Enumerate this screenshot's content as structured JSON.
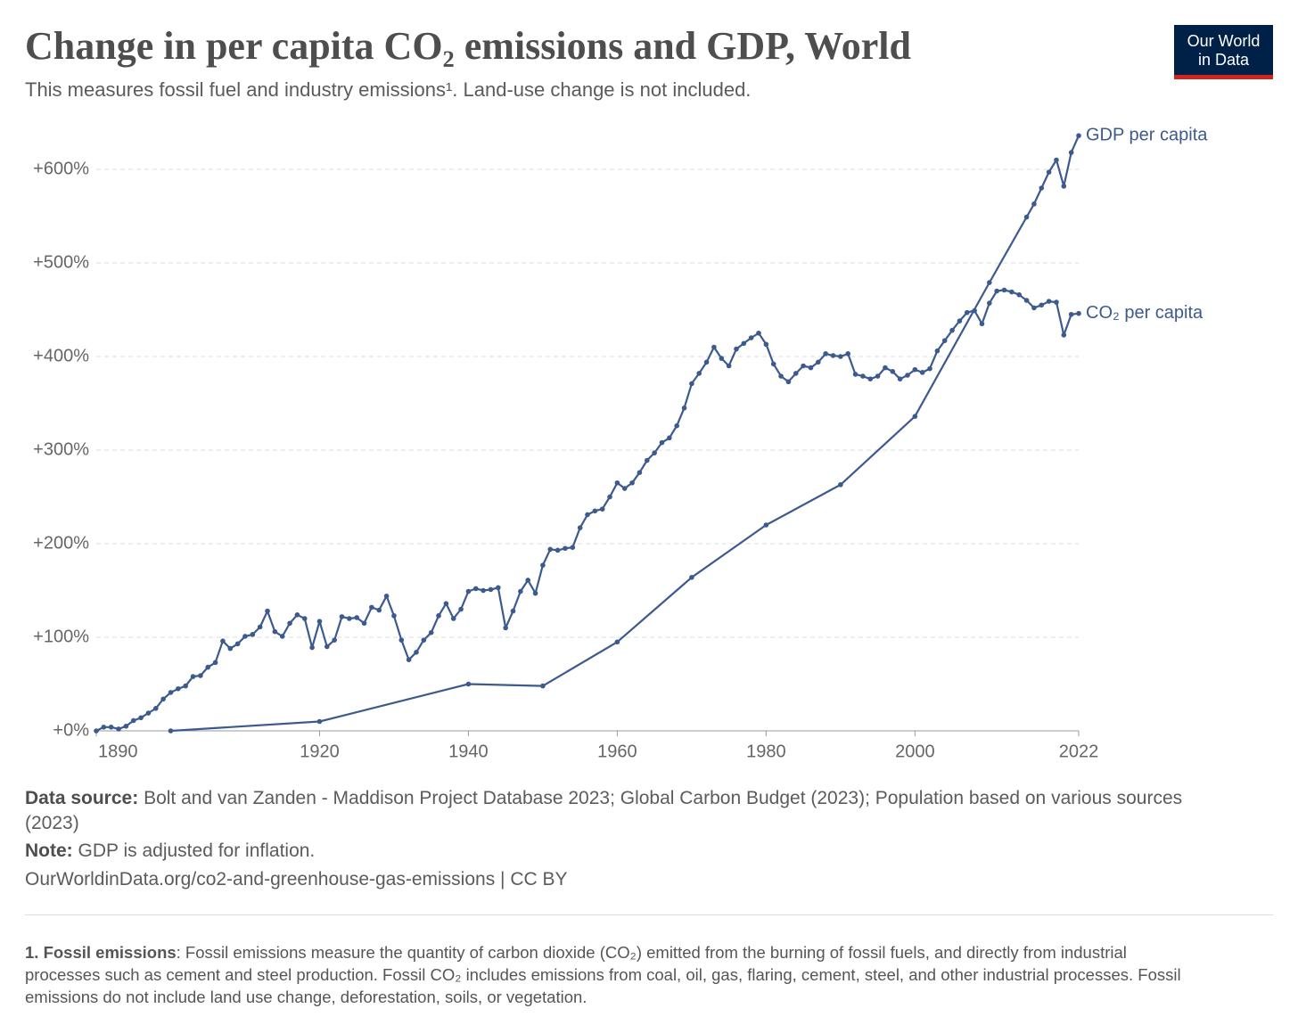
{
  "chart_data": {
    "type": "line",
    "title": "Change in per capita CO₂ emissions and GDP, World",
    "subtitle": "This measures fossil fuel and industry emissions¹. Land-use change is not included.",
    "logo": [
      "Our World",
      "in Data"
    ],
    "xlim": [
      1890,
      2022
    ],
    "xticks": [
      1890,
      1920,
      1940,
      1960,
      1980,
      2000,
      2022
    ],
    "ylim": [
      0,
      650
    ],
    "yticks": [
      {
        "value": 0,
        "label": "+0%"
      },
      {
        "value": 100,
        "label": "+100%"
      },
      {
        "value": 200,
        "label": "+200%"
      },
      {
        "value": 300,
        "label": "+300%"
      },
      {
        "value": 400,
        "label": "+400%"
      },
      {
        "value": 500,
        "label": "+500%"
      },
      {
        "value": 600,
        "label": "+600%"
      }
    ],
    "grid": true,
    "x": [
      1890,
      1891,
      1892,
      1893,
      1894,
      1895,
      1896,
      1897,
      1898,
      1899,
      1900,
      1901,
      1902,
      1903,
      1904,
      1905,
      1906,
      1907,
      1908,
      1909,
      1910,
      1911,
      1912,
      1913,
      1914,
      1915,
      1916,
      1917,
      1918,
      1919,
      1920,
      1921,
      1922,
      1923,
      1924,
      1925,
      1926,
      1927,
      1928,
      1929,
      1930,
      1931,
      1932,
      1933,
      1934,
      1935,
      1936,
      1937,
      1938,
      1939,
      1940,
      1941,
      1942,
      1943,
      1944,
      1945,
      1946,
      1947,
      1948,
      1949,
      1950,
      1951,
      1952,
      1953,
      1954,
      1955,
      1956,
      1957,
      1958,
      1959,
      1960,
      1961,
      1962,
      1963,
      1964,
      1965,
      1966,
      1967,
      1968,
      1969,
      1970,
      1971,
      1972,
      1973,
      1974,
      1975,
      1976,
      1977,
      1978,
      1979,
      1980,
      1981,
      1982,
      1983,
      1984,
      1985,
      1986,
      1987,
      1988,
      1989,
      1990,
      1991,
      1992,
      1993,
      1994,
      1995,
      1996,
      1997,
      1998,
      1999,
      2000,
      2001,
      2002,
      2003,
      2004,
      2005,
      2006,
      2007,
      2008,
      2009,
      2010,
      2011,
      2012,
      2013,
      2014,
      2015,
      2016,
      2017,
      2018,
      2019,
      2020,
      2021,
      2022
    ],
    "series": [
      {
        "name": "GDP per capita",
        "color": "#3d5a8e",
        "x": [
          1900,
          1920,
          1940,
          1950,
          1960,
          1970,
          1980,
          1990,
          2000,
          2010,
          2015,
          2016,
          2017,
          2018,
          2019,
          2020,
          2021,
          2022
        ],
        "values": [
          0,
          10,
          50,
          48,
          95,
          164,
          220,
          263,
          336,
          479,
          549,
          563,
          580,
          597,
          610,
          582,
          618,
          636
        ]
      },
      {
        "name": "CO₂ per capita",
        "color": "#3d5a8e",
        "values": [
          0,
          4,
          4,
          2,
          5,
          11,
          14,
          19,
          24,
          34,
          41,
          45,
          48,
          58,
          59,
          68,
          73,
          96,
          88,
          93,
          101,
          103,
          111,
          128,
          106,
          101,
          115,
          124,
          120,
          89,
          117,
          90,
          97,
          122,
          120,
          121,
          115,
          132,
          129,
          144,
          123,
          97,
          76,
          84,
          97,
          105,
          123,
          136,
          120,
          130,
          149,
          152,
          150,
          151,
          153,
          110,
          128,
          149,
          161,
          147,
          177,
          194,
          193,
          195,
          196,
          217,
          231,
          235,
          237,
          250,
          265,
          259,
          265,
          276,
          289,
          297,
          308,
          313,
          326,
          345,
          371,
          382,
          394,
          410,
          398,
          390,
          408,
          414,
          420,
          425,
          413,
          392,
          379,
          373,
          382,
          390,
          388,
          394,
          403,
          401,
          400,
          403,
          381,
          379,
          376,
          379,
          388,
          384,
          376,
          380,
          386,
          383,
          387,
          406,
          417,
          428,
          438,
          447,
          449,
          435,
          457,
          470,
          471,
          469,
          466,
          460,
          452,
          455,
          459,
          458,
          423,
          445,
          446
        ]
      }
    ],
    "source_label": "Data source:",
    "source": "Bolt and van Zanden - Maddison Project Database 2023; Global Carbon Budget (2023); Population based on various sources (2023)",
    "note_label": "Note:",
    "note": "GDP is adjusted for inflation.",
    "url": "OurWorldinData.org/co2-and-greenhouse-gas-emissions | CC BY",
    "footnote_label": "1. Fossil emissions",
    "footnote": ": Fossil emissions measure the quantity of carbon dioxide (CO₂) emitted from the burning of fossil fuels, and directly from industrial processes such as cement and steel production. Fossil CO₂ includes emissions from coal, oil, gas, flaring, cement, steel, and other industrial processes. Fossil emissions do not include land use change, deforestation, soils, or vegetation."
  }
}
